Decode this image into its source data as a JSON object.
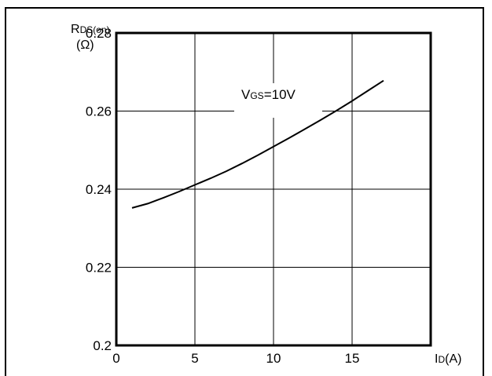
{
  "chart_data": {
    "type": "line",
    "title": "",
    "ylabel_main": "R",
    "ylabel_sub": "DS(on)",
    "ylabel_unit": "(Ω)",
    "xlabel_main": "I",
    "xlabel_sub": "D",
    "xlabel_unit": "(A)",
    "annotation_main": "V",
    "annotation_sub": "GS",
    "annotation_rest": "=10V",
    "xlim": [
      0,
      20
    ],
    "ylim": [
      0.2,
      0.28
    ],
    "x_ticks": [
      0,
      5,
      10,
      15
    ],
    "x_tick_labels": [
      "0",
      "5",
      "10",
      "15"
    ],
    "y_ticks": [
      0.2,
      0.22,
      0.24,
      0.26,
      0.28
    ],
    "y_tick_labels": [
      "0.2",
      "0.22",
      "0.24",
      "0.26",
      "0.28"
    ],
    "grid": true,
    "series": [
      {
        "x": [
          1,
          2,
          3,
          4,
          5,
          6,
          7,
          8,
          9,
          10,
          11,
          12,
          13,
          14,
          15,
          16,
          17
        ],
        "y": [
          0.2352,
          0.2363,
          0.2378,
          0.2394,
          0.2411,
          0.2428,
          0.2446,
          0.2466,
          0.2487,
          0.2509,
          0.2531,
          0.2554,
          0.2577,
          0.2601,
          0.2626,
          0.2652,
          0.2678
        ]
      }
    ]
  }
}
